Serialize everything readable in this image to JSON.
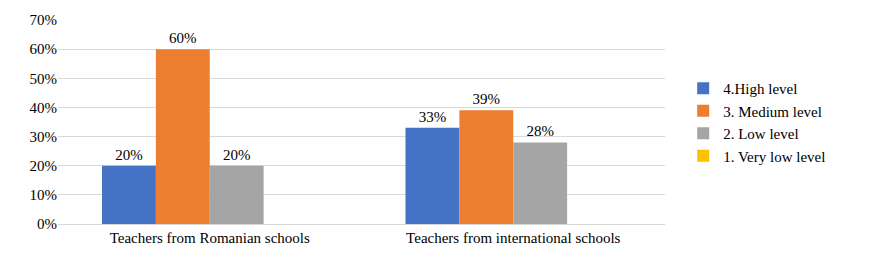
{
  "chart_data": {
    "type": "bar",
    "categories": [
      "Teachers from Romanian schools",
      "Teachers from international schools"
    ],
    "series": [
      {
        "name": "4.High level",
        "color": "#4472c4",
        "values": [
          20,
          33
        ],
        "value_labels": [
          "20%",
          "33%"
        ]
      },
      {
        "name": "3. Medium level",
        "color": "#ed7d31",
        "values": [
          60,
          39
        ],
        "value_labels": [
          "60%",
          "39%"
        ]
      },
      {
        "name": "2. Low level",
        "color": "#a5a5a5",
        "values": [
          20,
          28
        ],
        "value_labels": [
          "20%",
          "28%"
        ]
      },
      {
        "name": "1. Very low level",
        "color": "#ffc000",
        "values": [
          null,
          null
        ],
        "value_labels": [
          null,
          null
        ]
      }
    ],
    "ylim": [
      0,
      70
    ],
    "yticks": [
      {
        "value": 0,
        "label": "0%"
      },
      {
        "value": 10,
        "label": "10%"
      },
      {
        "value": 20,
        "label": "20%"
      },
      {
        "value": 30,
        "label": "30%"
      },
      {
        "value": 40,
        "label": "40%"
      },
      {
        "value": 50,
        "label": "50%"
      },
      {
        "value": 60,
        "label": "60%"
      },
      {
        "value": 70,
        "label": "70%"
      }
    ],
    "grid": true,
    "legend": "right",
    "data_labels": true
  }
}
